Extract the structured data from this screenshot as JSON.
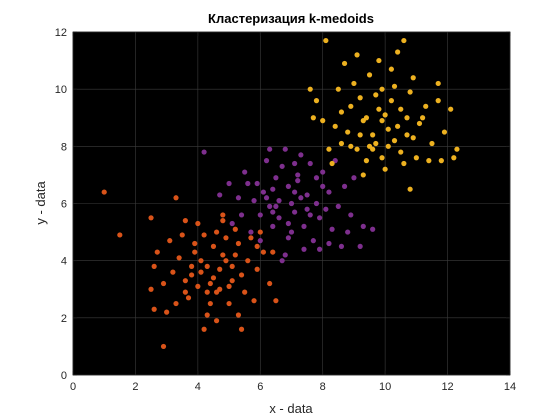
{
  "chart_data": {
    "type": "scatter",
    "title": "Кластеризация k-medoids",
    "xlabel": "x - data",
    "ylabel": "y - data",
    "xlim": [
      0,
      14
    ],
    "ylim": [
      0,
      12
    ],
    "xticks": [
      "0",
      "2",
      "4",
      "6",
      "8",
      "10",
      "12",
      "14"
    ],
    "yticks": [
      "0",
      "2",
      "4",
      "6",
      "8",
      "10",
      "12"
    ],
    "grid": true,
    "background": "#000000",
    "grid_color": "#3c3c3c",
    "series": [
      {
        "color": "#d95319",
        "points": [
          [
            4.1,
            4.0
          ],
          [
            4.5,
            3.4
          ],
          [
            3.9,
            4.6
          ],
          [
            4.8,
            4.2
          ],
          [
            5.1,
            3.8
          ],
          [
            3.6,
            3.3
          ],
          [
            4.3,
            2.9
          ],
          [
            5.3,
            4.6
          ],
          [
            4.6,
            5.0
          ],
          [
            3.4,
            4.1
          ],
          [
            4.0,
            3.1
          ],
          [
            5.0,
            3.1
          ],
          [
            3.8,
            3.8
          ],
          [
            4.7,
            3.7
          ],
          [
            4.2,
            4.9
          ],
          [
            5.6,
            4.0
          ],
          [
            3.2,
            3.6
          ],
          [
            4.9,
            4.8
          ],
          [
            5.4,
            3.5
          ],
          [
            4.4,
            2.5
          ],
          [
            3.7,
            2.7
          ],
          [
            5.7,
            4.8
          ],
          [
            4.8,
            5.4
          ],
          [
            3.5,
            4.9
          ],
          [
            4.1,
            3.6
          ],
          [
            5.2,
            5.1
          ],
          [
            2.9,
            3.2
          ],
          [
            4.6,
            2.9
          ],
          [
            5.9,
            3.7
          ],
          [
            3.3,
            2.5
          ],
          [
            4.0,
            5.3
          ],
          [
            5.5,
            2.9
          ],
          [
            4.5,
            4.5
          ],
          [
            2.6,
            3.8
          ],
          [
            6.1,
            4.3
          ],
          [
            4.3,
            2.1
          ],
          [
            5.0,
            2.5
          ],
          [
            3.1,
            4.7
          ],
          [
            2.5,
            3.0
          ],
          [
            6.3,
            3.2
          ],
          [
            4.8,
            5.6
          ],
          [
            5.3,
            2.1
          ],
          [
            3.6,
            5.4
          ],
          [
            2.7,
            4.3
          ],
          [
            4.2,
            1.6
          ],
          [
            5.8,
            2.6
          ],
          [
            3.0,
            2.2
          ],
          [
            6.0,
            5.0
          ],
          [
            2.5,
            5.5
          ],
          [
            3.3,
            6.2
          ],
          [
            2.6,
            2.3
          ],
          [
            6.4,
            4.3
          ],
          [
            1.0,
            6.4
          ],
          [
            1.5,
            4.9
          ],
          [
            2.9,
            1.0
          ],
          [
            4.6,
            1.9
          ],
          [
            5.4,
            1.6
          ],
          [
            6.5,
            2.6
          ],
          [
            5.9,
            4.5
          ],
          [
            3.6,
            2.9
          ],
          [
            4.4,
            3.2
          ],
          [
            5.2,
            4.2
          ],
          [
            3.9,
            4.3
          ],
          [
            4.7,
            3.0
          ],
          [
            4.9,
            4.0
          ],
          [
            3.8,
            3.5
          ],
          [
            5.1,
            3.3
          ],
          [
            4.3,
            3.8
          ]
        ]
      },
      {
        "color": "#7e2f8e",
        "points": [
          [
            6.6,
            6.1
          ],
          [
            7.1,
            5.7
          ],
          [
            6.9,
            6.6
          ],
          [
            7.5,
            6.3
          ],
          [
            6.3,
            5.9
          ],
          [
            7.8,
            6.0
          ],
          [
            7.2,
            7.0
          ],
          [
            6.5,
            6.9
          ],
          [
            7.9,
            5.5
          ],
          [
            6.0,
            5.6
          ],
          [
            7.4,
            5.2
          ],
          [
            8.2,
            6.4
          ],
          [
            6.7,
            7.3
          ],
          [
            6.1,
            6.4
          ],
          [
            7.6,
            7.4
          ],
          [
            5.8,
            6.1
          ],
          [
            8.5,
            5.9
          ],
          [
            7.0,
            5.0
          ],
          [
            6.4,
            5.2
          ],
          [
            8.0,
            7.1
          ],
          [
            5.6,
            6.7
          ],
          [
            7.3,
            7.7
          ],
          [
            8.7,
            6.6
          ],
          [
            6.9,
            4.8
          ],
          [
            5.4,
            5.6
          ],
          [
            8.3,
            5.1
          ],
          [
            6.2,
            7.5
          ],
          [
            7.7,
            4.7
          ],
          [
            5.7,
            5.0
          ],
          [
            8.9,
            5.6
          ],
          [
            6.8,
            7.9
          ],
          [
            7.5,
            5.8
          ],
          [
            5.9,
            6.7
          ],
          [
            7.1,
            6.4
          ],
          [
            6.4,
            6.5
          ],
          [
            8.0,
            6.6
          ],
          [
            6.6,
            5.5
          ],
          [
            7.8,
            6.9
          ],
          [
            5.5,
            7.1
          ],
          [
            8.4,
            7.5
          ],
          [
            6.0,
            4.7
          ],
          [
            7.4,
            4.4
          ],
          [
            8.8,
            5.0
          ],
          [
            6.3,
            7.9
          ],
          [
            7.9,
            4.4
          ],
          [
            9.0,
            6.9
          ],
          [
            5.3,
            6.2
          ],
          [
            6.8,
            4.2
          ],
          [
            8.2,
            4.6
          ],
          [
            7.1,
            7.4
          ],
          [
            4.2,
            7.8
          ],
          [
            5.0,
            6.7
          ],
          [
            9.3,
            5.2
          ],
          [
            6.7,
            4.0
          ],
          [
            8.6,
            4.5
          ],
          [
            9.6,
            5.1
          ],
          [
            9.2,
            4.5
          ],
          [
            7.3,
            6.2
          ],
          [
            6.5,
            5.9
          ],
          [
            7.6,
            5.6
          ],
          [
            6.9,
            5.3
          ],
          [
            7.2,
            6.8
          ],
          [
            6.2,
            6.2
          ],
          [
            8.1,
            5.8
          ],
          [
            7.0,
            6.0
          ],
          [
            6.4,
            5.7
          ],
          [
            5.1,
            5.3
          ],
          [
            4.7,
            6.3
          ]
        ]
      },
      {
        "color": "#edb120",
        "points": [
          [
            9.6,
            8.4
          ],
          [
            10.1,
            8.0
          ],
          [
            9.3,
            8.9
          ],
          [
            10.4,
            8.7
          ],
          [
            9.8,
            9.3
          ],
          [
            9.1,
            7.9
          ],
          [
            10.7,
            9.0
          ],
          [
            9.4,
            7.5
          ],
          [
            10.2,
            9.6
          ],
          [
            8.8,
            8.5
          ],
          [
            10.9,
            8.3
          ],
          [
            9.9,
            7.6
          ],
          [
            8.6,
            9.2
          ],
          [
            10.5,
            7.8
          ],
          [
            9.2,
            9.7
          ],
          [
            11.1,
            8.8
          ],
          [
            8.9,
            8.0
          ],
          [
            10.3,
            10.1
          ],
          [
            9.7,
            8.1
          ],
          [
            8.4,
            8.7
          ],
          [
            11.3,
            9.4
          ],
          [
            10.0,
            7.2
          ],
          [
            9.0,
            10.2
          ],
          [
            10.8,
            9.9
          ],
          [
            8.2,
            7.9
          ],
          [
            11.5,
            8.1
          ],
          [
            9.5,
            10.5
          ],
          [
            10.6,
            7.4
          ],
          [
            8.5,
            10.0
          ],
          [
            11.7,
            9.6
          ],
          [
            9.3,
            7.0
          ],
          [
            10.2,
            10.7
          ],
          [
            8.0,
            8.9
          ],
          [
            11.0,
            7.6
          ],
          [
            8.7,
            10.9
          ],
          [
            11.9,
            8.5
          ],
          [
            9.8,
            11.0
          ],
          [
            10.9,
            10.4
          ],
          [
            7.8,
            9.6
          ],
          [
            11.4,
            7.5
          ],
          [
            9.1,
            11.2
          ],
          [
            12.1,
            9.3
          ],
          [
            10.4,
            11.3
          ],
          [
            8.3,
            7.4
          ],
          [
            11.7,
            10.2
          ],
          [
            9.6,
            7.9
          ],
          [
            10.1,
            8.6
          ],
          [
            9.4,
            9.0
          ],
          [
            8.1,
            11.7
          ],
          [
            10.6,
            11.7
          ],
          [
            7.7,
            9.0
          ],
          [
            7.6,
            10.0
          ],
          [
            12.2,
            7.6
          ],
          [
            12.3,
            7.9
          ],
          [
            11.8,
            7.5
          ],
          [
            10.8,
            6.5
          ],
          [
            9.9,
            8.9
          ],
          [
            10.3,
            8.2
          ],
          [
            9.2,
            8.4
          ],
          [
            9.7,
            9.8
          ],
          [
            10.0,
            9.1
          ],
          [
            9.5,
            8.0
          ],
          [
            10.7,
            8.4
          ],
          [
            8.9,
            9.4
          ],
          [
            11.2,
            9.0
          ],
          [
            8.6,
            8.1
          ],
          [
            9.9,
            10.0
          ],
          [
            10.5,
            9.3
          ]
        ]
      }
    ]
  }
}
